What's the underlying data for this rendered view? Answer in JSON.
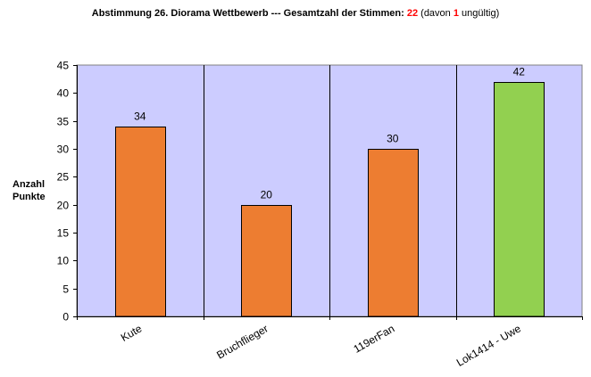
{
  "title": {
    "main": "Abstimmung 26. Diorama Wettbewerb --- Gesamtzahl der Stimmen:",
    "total_votes": "22",
    "invalid_prefix": "(davon",
    "invalid_count": "1",
    "invalid_suffix": "ungültig)"
  },
  "colors": {
    "plot_background": "#ccccff",
    "bar_orange": "#ed7d31",
    "bar_green": "#92d050",
    "highlight_red": "#ff0000"
  },
  "chart_data": {
    "type": "bar",
    "title": "Abstimmung 26. Diorama Wettbewerb --- Gesamtzahl der Stimmen: 22 (davon 1 ungültig)",
    "xlabel": "",
    "ylabel_lines": [
      "Anzahl",
      "Punkte"
    ],
    "categories": [
      "Kute",
      "Bruchflieger",
      "119erFan",
      "Lok1414 - Uwe"
    ],
    "values": [
      34,
      20,
      30,
      42
    ],
    "bar_colors": [
      "#ed7d31",
      "#ed7d31",
      "#ed7d31",
      "#92d050"
    ],
    "ylim": [
      0,
      45
    ],
    "yticks": [
      0,
      5,
      10,
      15,
      20,
      25,
      30,
      35,
      40,
      45
    ],
    "data_labels": true,
    "grid": false,
    "legend": "none"
  }
}
